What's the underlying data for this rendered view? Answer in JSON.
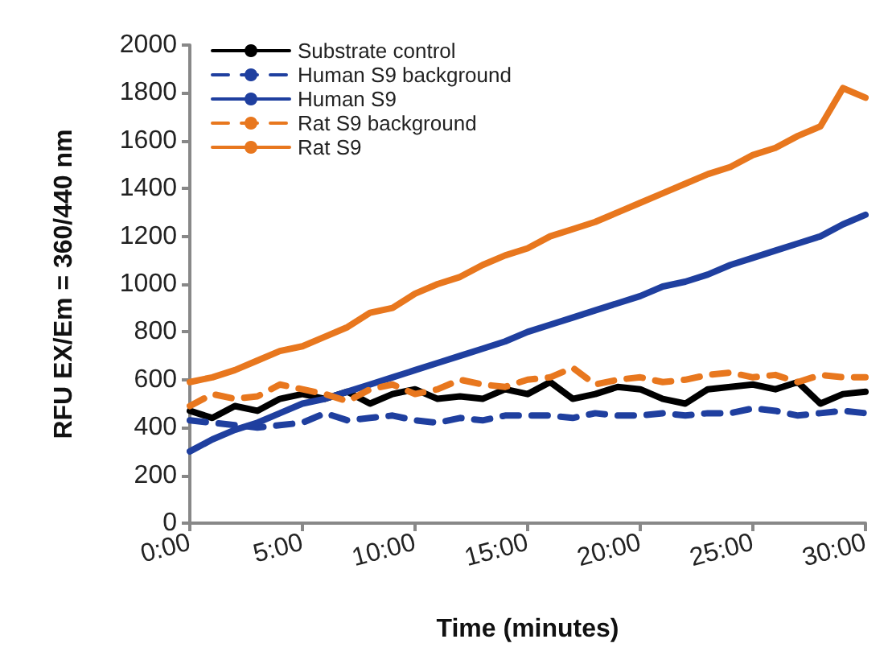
{
  "chart_data": {
    "type": "line",
    "xlabel": "Time (minutes)",
    "ylabel": "RFU EX/Em = 360/440 nm",
    "x": [
      0,
      1,
      2,
      3,
      4,
      5,
      6,
      7,
      8,
      9,
      10,
      11,
      12,
      13,
      14,
      15,
      16,
      17,
      18,
      19,
      20,
      21,
      22,
      23,
      24,
      25,
      26,
      27,
      28,
      29,
      30
    ],
    "xlim": [
      0,
      30
    ],
    "xticks": [
      {
        "value": 0,
        "label": "0:00"
      },
      {
        "value": 5,
        "label": "5:00"
      },
      {
        "value": 10,
        "label": "10:00"
      },
      {
        "value": 15,
        "label": "15:00"
      },
      {
        "value": 20,
        "label": "20:00"
      },
      {
        "value": 25,
        "label": "25:00"
      },
      {
        "value": 30,
        "label": "30:00"
      }
    ],
    "ylim": [
      0,
      2000
    ],
    "yticks": [
      0,
      200,
      400,
      600,
      800,
      1000,
      1200,
      1400,
      1600,
      1800,
      2000
    ],
    "grid": false,
    "legend": "top left",
    "marker": "none",
    "series": [
      {
        "name": "Substrate control",
        "color": "#000000",
        "line_style": "solid",
        "values": [
          470,
          440,
          490,
          470,
          520,
          540,
          520,
          550,
          500,
          540,
          560,
          520,
          530,
          520,
          560,
          540,
          590,
          520,
          540,
          570,
          560,
          520,
          500,
          560,
          570,
          580,
          560,
          590,
          500,
          540,
          550
        ]
      },
      {
        "name": "Human S9 background",
        "color": "#1f3f9f",
        "line_style": "dashed",
        "values": [
          430,
          420,
          410,
          400,
          410,
          420,
          460,
          430,
          440,
          450,
          430,
          420,
          440,
          430,
          450,
          450,
          450,
          440,
          460,
          450,
          450,
          460,
          450,
          460,
          460,
          480,
          470,
          450,
          460,
          470,
          460
        ]
      },
      {
        "name": "Human S9",
        "color": "#1f3f9f",
        "line_style": "solid",
        "values": [
          300,
          350,
          390,
          420,
          460,
          500,
          520,
          550,
          580,
          610,
          640,
          670,
          700,
          730,
          760,
          800,
          830,
          860,
          890,
          920,
          950,
          990,
          1010,
          1040,
          1080,
          1110,
          1140,
          1170,
          1200,
          1250,
          1290
        ]
      },
      {
        "name": "Rat S9 background",
        "color": "#e8771e",
        "line_style": "dashed",
        "values": [
          490,
          540,
          520,
          530,
          580,
          560,
          540,
          510,
          560,
          580,
          540,
          560,
          600,
          580,
          570,
          600,
          610,
          650,
          580,
          600,
          610,
          590,
          600,
          620,
          630,
          610,
          620,
          590,
          620,
          610,
          610
        ]
      },
      {
        "name": "Rat S9",
        "color": "#e8771e",
        "line_style": "solid",
        "values": [
          590,
          610,
          640,
          680,
          720,
          740,
          780,
          820,
          880,
          900,
          960,
          1000,
          1030,
          1080,
          1120,
          1150,
          1200,
          1230,
          1260,
          1300,
          1340,
          1380,
          1420,
          1460,
          1490,
          1540,
          1570,
          1620,
          1660,
          1820,
          1780
        ]
      }
    ]
  }
}
